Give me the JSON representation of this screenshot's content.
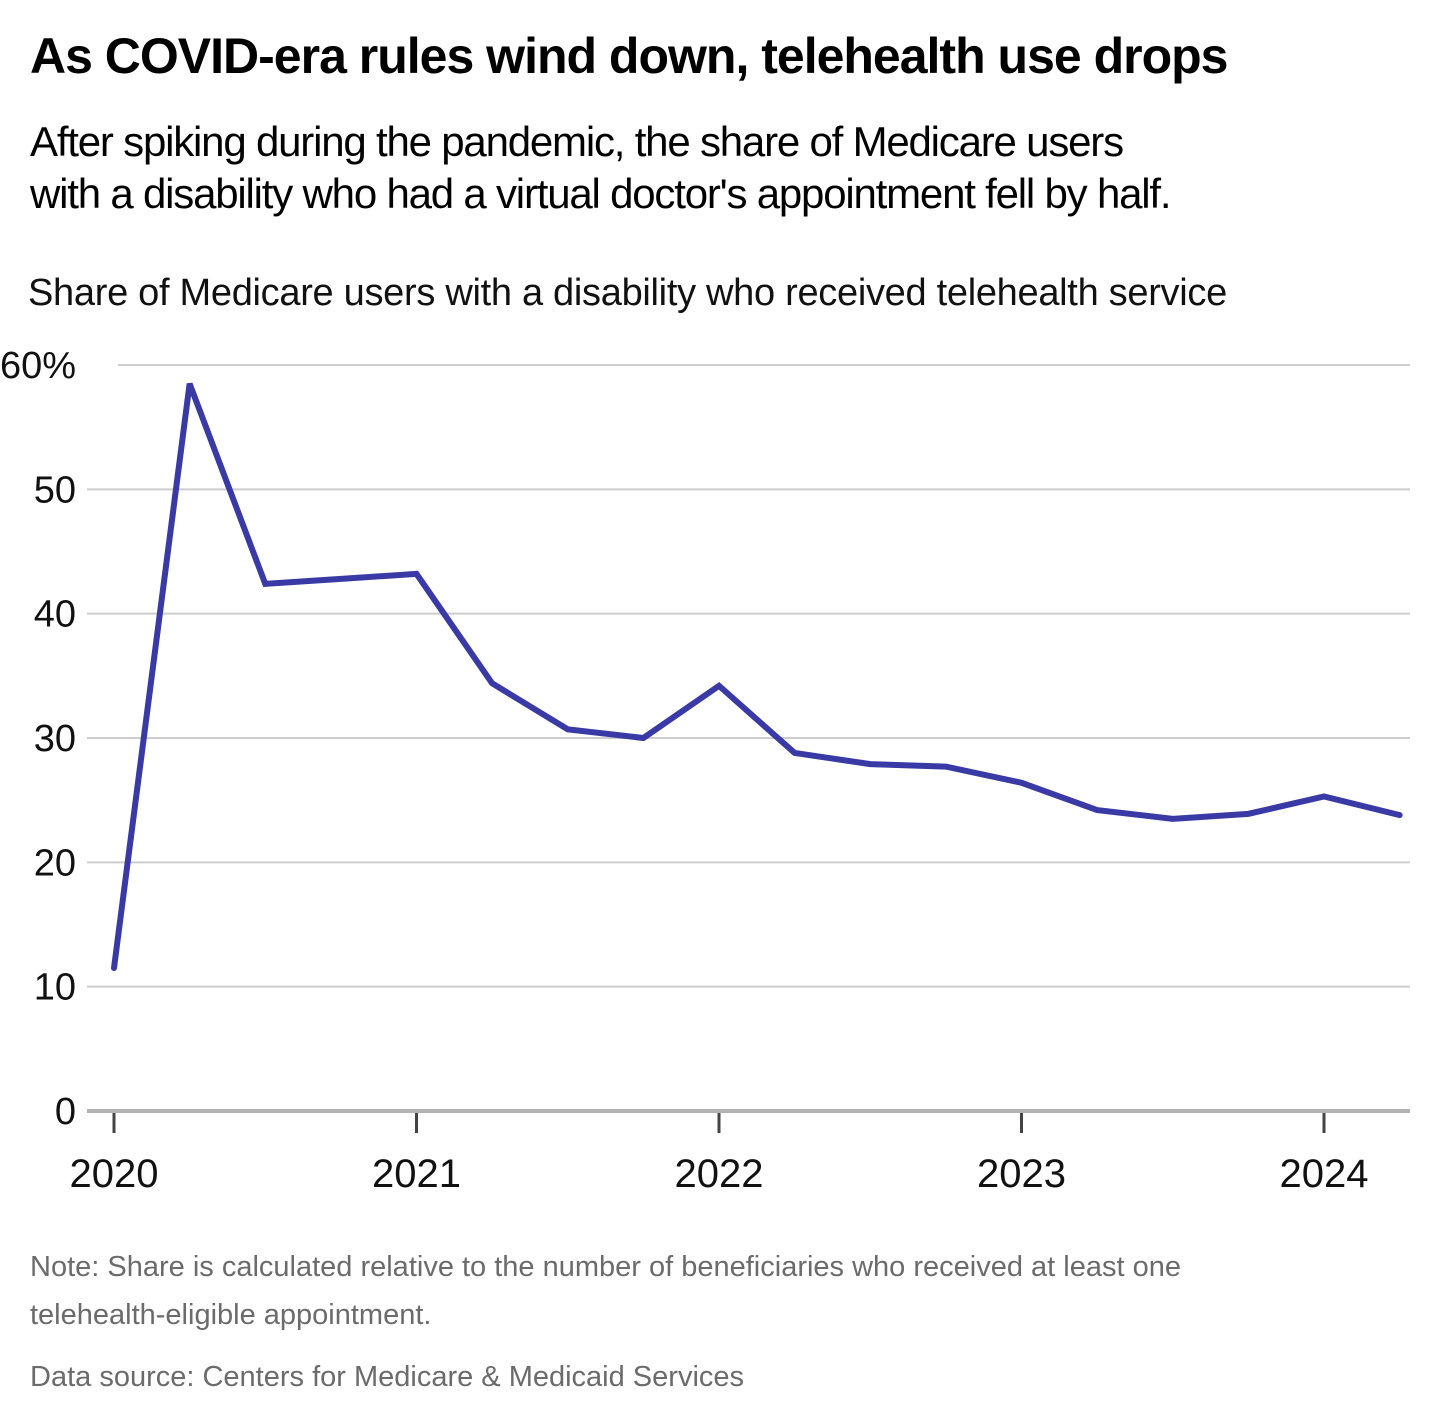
{
  "header": {
    "title": "As COVID-era rules wind down, telehealth use drops",
    "subtitle_lines": [
      "After spiking during the pandemic, the share of Medicare users",
      "with a disability who had a virtual doctor's appointment fell by half."
    ]
  },
  "chart": {
    "axis_title": "Share of Medicare users with a disability who received telehealth service"
  },
  "chart_data": {
    "type": "line",
    "title": "Share of Medicare users with a disability who received telehealth service",
    "x": [
      "2020 Q1",
      "2020 Q2",
      "2020 Q3",
      "2020 Q4",
      "2021 Q1",
      "2021 Q2",
      "2021 Q3",
      "2021 Q4",
      "2022 Q1",
      "2022 Q2",
      "2022 Q3",
      "2022 Q4",
      "2023 Q1",
      "2023 Q2",
      "2023 Q3",
      "2023 Q4",
      "2024 Q1",
      "2024 Q2"
    ],
    "values": [
      11.5,
      58.5,
      42.4,
      42.8,
      43.2,
      34.4,
      30.7,
      30.0,
      34.2,
      28.8,
      27.9,
      27.7,
      26.4,
      24.2,
      23.5,
      23.9,
      25.3,
      23.8
    ],
    "unit": "%",
    "x_tick_labels": [
      "2020",
      "2021",
      "2022",
      "2023",
      "2024"
    ],
    "y_ticks": [
      0,
      10,
      20,
      30,
      40,
      50,
      60
    ],
    "y_tick_labels": [
      "0",
      "10",
      "20",
      "30",
      "40",
      "50",
      "60%"
    ],
    "ylim": [
      0,
      62
    ],
    "grid": "horizontal",
    "legend": "none",
    "line_color": "#3a3aa6",
    "grid_color": "#cdcdcd",
    "axis_line_color": "#b3b3b3",
    "tick_color": "#444444"
  },
  "footer": {
    "note_lines": [
      "Note: Share is calculated relative to the number of beneficiaries who received at least one",
      "telehealth-eligible appointment."
    ],
    "source": "Data source: Centers for Medicare & Medicaid Services"
  }
}
